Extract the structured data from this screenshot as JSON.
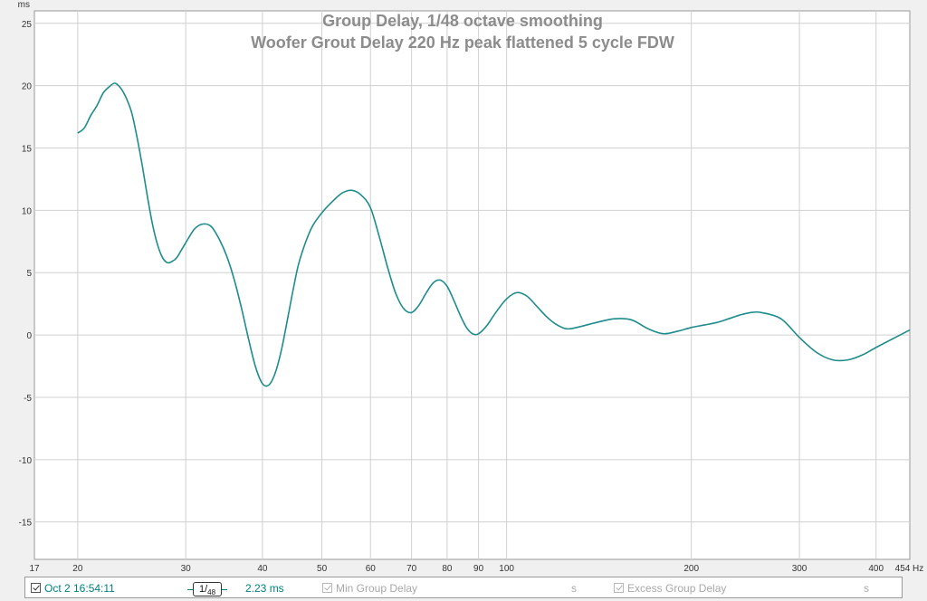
{
  "chart_data": {
    "type": "line",
    "title": "Group Delay, 1/48 octave smoothing",
    "subtitle": "Woofer Grout Delay 220 Hz peak flattened 5 cycle FDW",
    "xlabel": "",
    "ylabel": "",
    "x_unit": "Hz",
    "y_unit": "ms",
    "x_scale": "log",
    "xlim": [
      17,
      454
    ],
    "ylim": [
      -18,
      26
    ],
    "grid": true,
    "x_ticks": [
      20,
      30,
      40,
      50,
      60,
      70,
      80,
      90,
      100,
      200,
      300,
      400
    ],
    "x_tick_labels": [
      "20",
      "30",
      "40",
      "50",
      "60",
      "70",
      "80",
      "90",
      "100",
      "200",
      "300",
      "400"
    ],
    "x_min_label": "17",
    "x_max_label": "454",
    "y_ticks": [
      25,
      20,
      15,
      10,
      5,
      0,
      -5,
      -10,
      -15
    ],
    "y_tick_labels": [
      "25",
      "20",
      "15",
      "10",
      "5",
      "0",
      "-5",
      "-10",
      "-15"
    ],
    "line_color": "#1e8c8c",
    "series": [
      {
        "x": [
          20,
          20.5,
          21,
          21.5,
          22,
          22.5,
          23,
          23.5,
          24,
          24.5,
          25,
          25.5,
          26,
          26.5,
          27,
          27.5,
          28,
          28.5,
          29,
          29.5,
          30,
          31,
          32,
          33,
          34,
          35,
          36,
          37,
          38,
          39,
          40,
          41,
          42,
          43,
          44,
          45,
          46,
          48,
          50,
          52,
          54,
          56,
          58,
          60,
          62,
          64,
          66,
          68,
          70,
          72,
          74,
          76,
          78,
          80,
          82,
          84,
          86,
          88,
          90,
          93,
          96,
          100,
          104,
          108,
          112,
          116,
          120,
          125,
          130,
          140,
          150,
          160,
          170,
          180,
          190,
          200,
          210,
          220,
          230,
          240,
          250,
          260,
          280,
          300,
          320,
          340,
          360,
          380,
          400,
          430,
          454
        ],
        "y": [
          16.2,
          16.6,
          17.6,
          18.4,
          19.4,
          19.9,
          20.2,
          19.8,
          19.0,
          17.8,
          15.8,
          13.5,
          11.0,
          8.8,
          7.2,
          6.2,
          5.8,
          5.9,
          6.2,
          6.8,
          7.4,
          8.5,
          8.9,
          8.7,
          7.7,
          6.3,
          4.4,
          2.1,
          -0.4,
          -2.6,
          -3.9,
          -4.0,
          -3.0,
          -1.1,
          1.4,
          3.9,
          6.0,
          8.5,
          9.8,
          10.7,
          11.4,
          11.6,
          11.2,
          10.2,
          7.9,
          5.4,
          3.3,
          2.1,
          1.8,
          2.4,
          3.4,
          4.2,
          4.4,
          3.9,
          2.8,
          1.6,
          0.6,
          0.1,
          0.1,
          0.8,
          1.8,
          2.9,
          3.4,
          3.1,
          2.3,
          1.5,
          0.9,
          0.5,
          0.6,
          1.0,
          1.3,
          1.2,
          0.5,
          0.1,
          0.3,
          0.6,
          0.8,
          1.0,
          1.3,
          1.6,
          1.8,
          1.8,
          1.3,
          -0.2,
          -1.4,
          -2.0,
          -2.0,
          -1.6,
          -1.0,
          -0.2,
          0.4
        ]
      }
    ]
  },
  "legend": {
    "curve_name": "Oct 2 16:54:11",
    "smoothing_num": "1",
    "smoothing_den": "48",
    "delay_value": "2.23 ms",
    "min_group_delay_label": "Min Group Delay",
    "min_group_delay_unit": "s",
    "excess_group_delay_label": "Excess Group Delay",
    "excess_group_delay_unit": "s"
  }
}
